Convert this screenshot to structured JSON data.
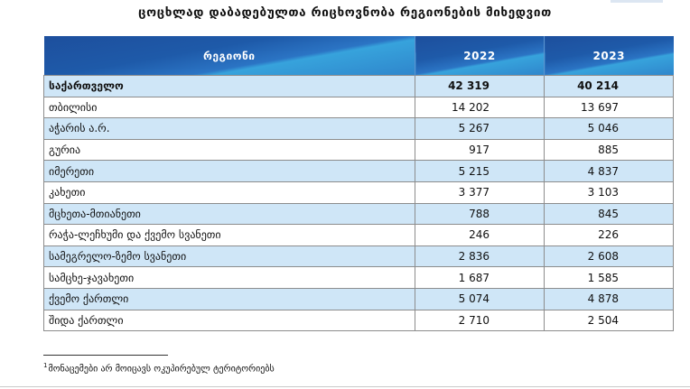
{
  "title": "ცოცხლად დაბადებულთა რიცხოვნობა რეგიონების მიხედვით",
  "table": {
    "headers": [
      "რეგიონი",
      "2022",
      "2023"
    ],
    "rows": [
      {
        "region": "საქართველო",
        "y2022": "42 319",
        "y2023": "40 214"
      },
      {
        "region": "თბილისი",
        "y2022": "14 202",
        "y2023": "13 697"
      },
      {
        "region": "აჭარის ა.რ.",
        "y2022": "5 267",
        "y2023": "5 046"
      },
      {
        "region": "გურია",
        "y2022": "917",
        "y2023": "885"
      },
      {
        "region": "იმერეთი",
        "y2022": "5 215",
        "y2023": "4 837"
      },
      {
        "region": "კახეთი",
        "y2022": "3 377",
        "y2023": "3 103"
      },
      {
        "region": "მცხეთა-მთიანეთი",
        "y2022": "788",
        "y2023": "845"
      },
      {
        "region": "რაჭა-ლეჩხუმი და ქვემო სვანეთი",
        "y2022": "246",
        "y2023": "226"
      },
      {
        "region": "სამეგრელო-ზემო სვანეთი",
        "y2022": "2 836",
        "y2023": "2 608"
      },
      {
        "region": "სამცხე-ჯავახეთი",
        "y2022": "1 687",
        "y2023": "1 585"
      },
      {
        "region": "ქვემო ქართლი",
        "y2022": "5 074",
        "y2023": "4 878"
      },
      {
        "region": "შიდა ქართლი",
        "y2022": "2 710",
        "y2023": "2 504"
      }
    ]
  },
  "footnote": {
    "marker": "1",
    "text": "მონაცემები არ მოიცავს ოკუპირებულ ტერიტორიებს"
  },
  "colors": {
    "header_blue": "#1e5aa9",
    "row_highlight": "#cfe6f7"
  }
}
